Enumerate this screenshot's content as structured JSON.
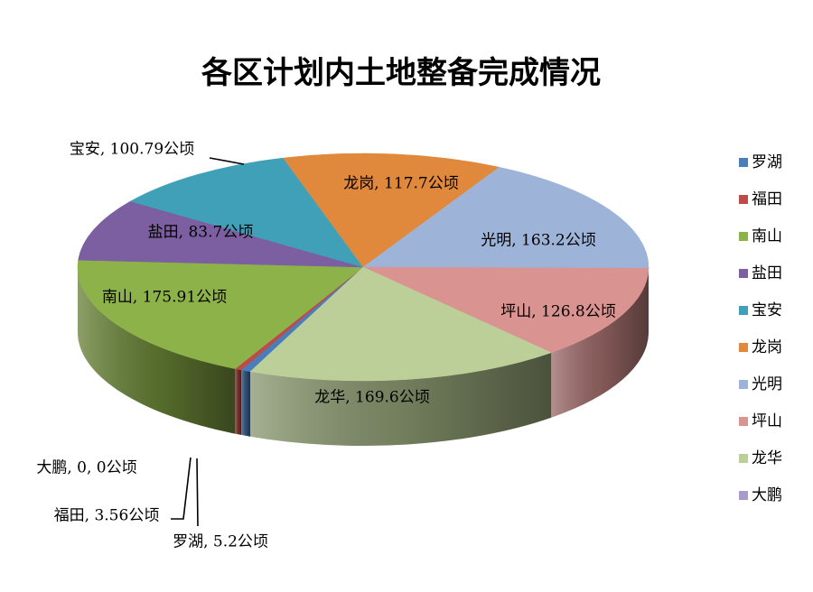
{
  "chart_data": {
    "type": "pie",
    "title": "各区计划内土地整备完成情况",
    "unit": "公顷",
    "legend_position": "right",
    "series": [
      {
        "name": "罗湖",
        "value": 5.2,
        "label": "罗湖, 5.2公顷",
        "color": "#4a7ebb"
      },
      {
        "name": "福田",
        "value": 3.56,
        "label": "福田, 3.56公顷",
        "color": "#be4b48"
      },
      {
        "name": "南山",
        "value": 175.91,
        "label": "南山, 175.91公顷",
        "color": "#8eb24a"
      },
      {
        "name": "盐田",
        "value": 83.7,
        "label": "盐田, 83.7公顷",
        "color": "#7b5fa0"
      },
      {
        "name": "宝安",
        "value": 100.79,
        "label": "宝安, 100.79公顷",
        "color": "#3fa0b8"
      },
      {
        "name": "龙岗",
        "value": 117.7,
        "label": "龙岗, 117.7公顷",
        "color": "#e0893d"
      },
      {
        "name": "光明",
        "value": 163.2,
        "label": "光明, 163.2公顷",
        "color": "#9db3d8"
      },
      {
        "name": "坪山",
        "value": 126.8,
        "label": "坪山, 126.8公顷",
        "color": "#d99391"
      },
      {
        "name": "龙华",
        "value": 169.6,
        "label": "龙华, 169.6公顷",
        "color": "#bccf98"
      },
      {
        "name": "大鹏",
        "value": 0,
        "label": "大鹏, 0, 0公顷",
        "color": "#a99bc8"
      }
    ]
  }
}
